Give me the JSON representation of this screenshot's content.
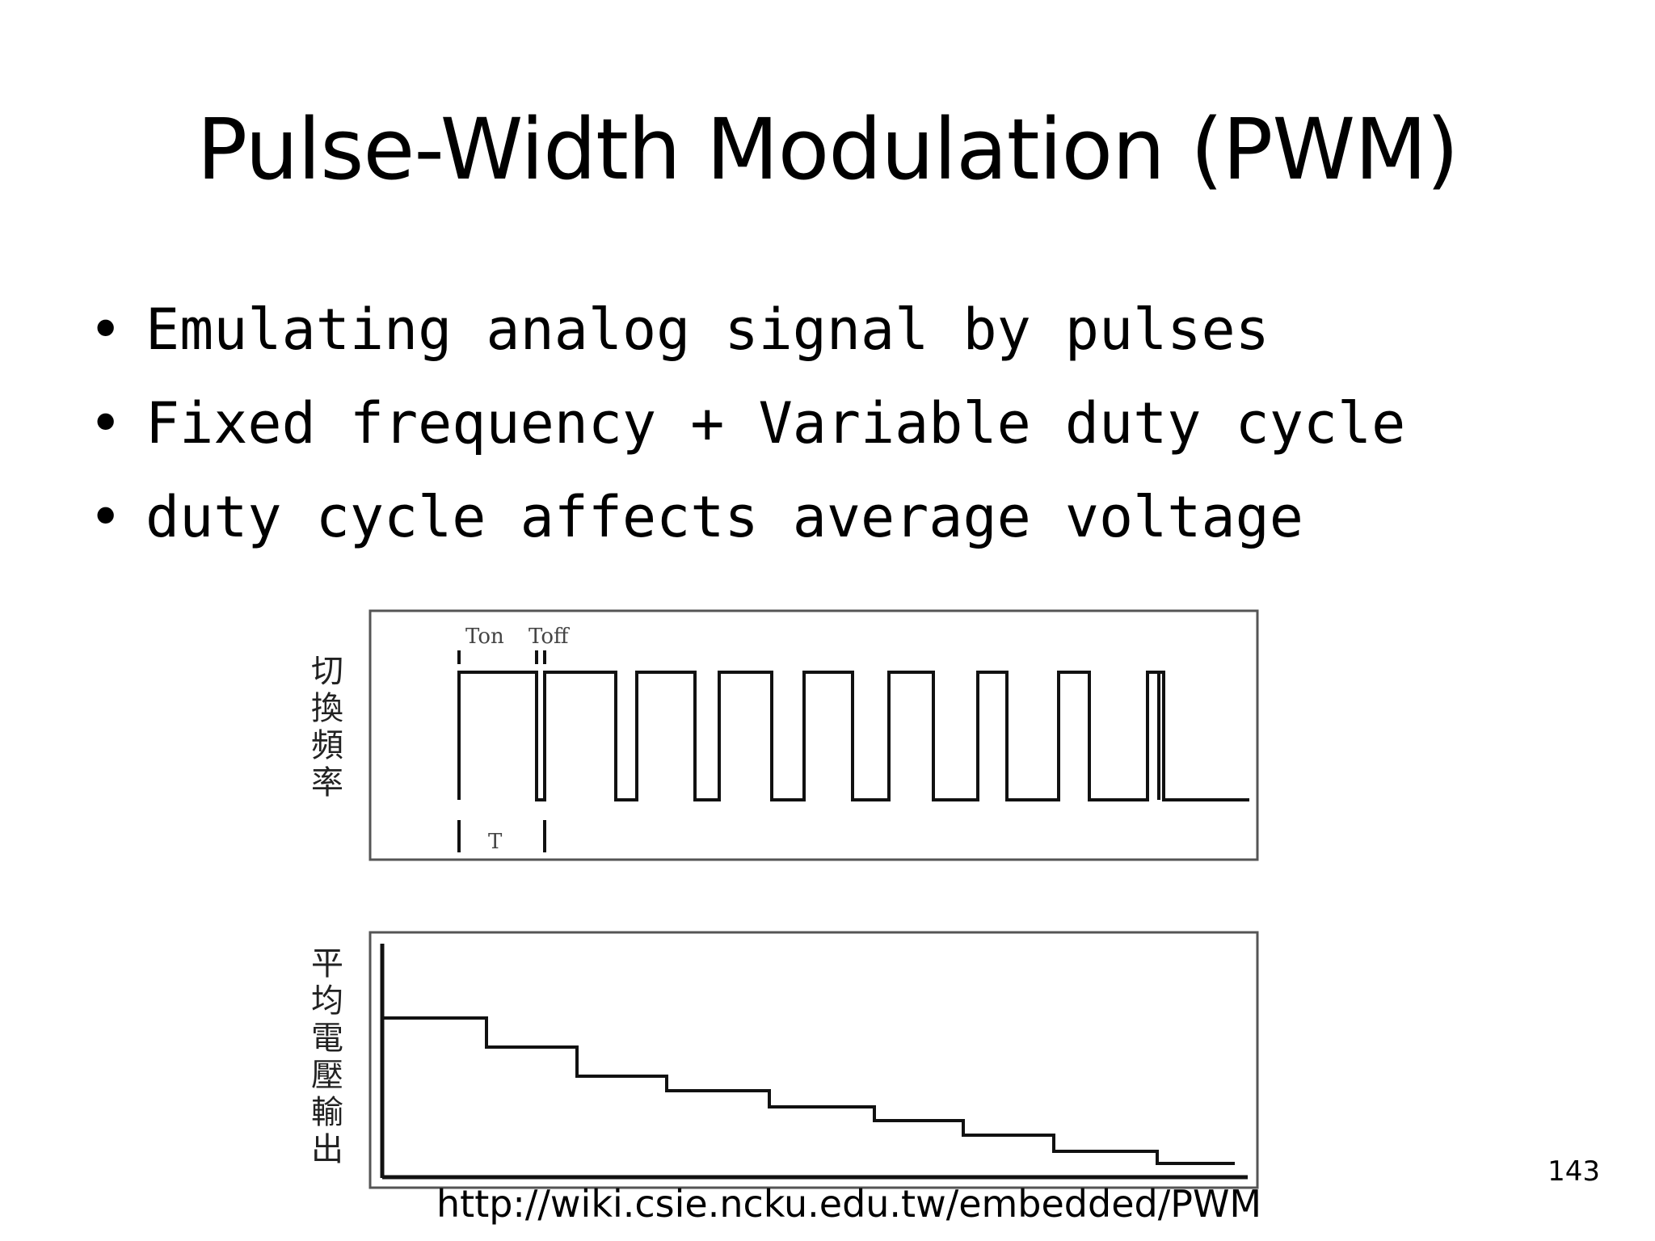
{
  "slide": {
    "title": "Pulse-Width Modulation (PWM)",
    "bullets": [
      "Emulating analog signal by pulses",
      "Fixed frequency + Variable duty cycle",
      "duty cycle affects average voltage"
    ],
    "bullet_glyph": "•",
    "source_url": "http://wiki.csie.ncku.edu.tw/embedded/PWM",
    "page_number": "143"
  },
  "diagram": {
    "top_panel": {
      "side_label": [
        "切",
        "換",
        "頻",
        "率"
      ],
      "ton_label": "Ton",
      "toff_label": "Toff",
      "period_label": "T"
    },
    "bottom_panel": {
      "side_label": [
        "平",
        "均",
        "電",
        "壓",
        "輸",
        "出"
      ]
    },
    "line_color": "#111111",
    "frame_color": "#555555"
  }
}
